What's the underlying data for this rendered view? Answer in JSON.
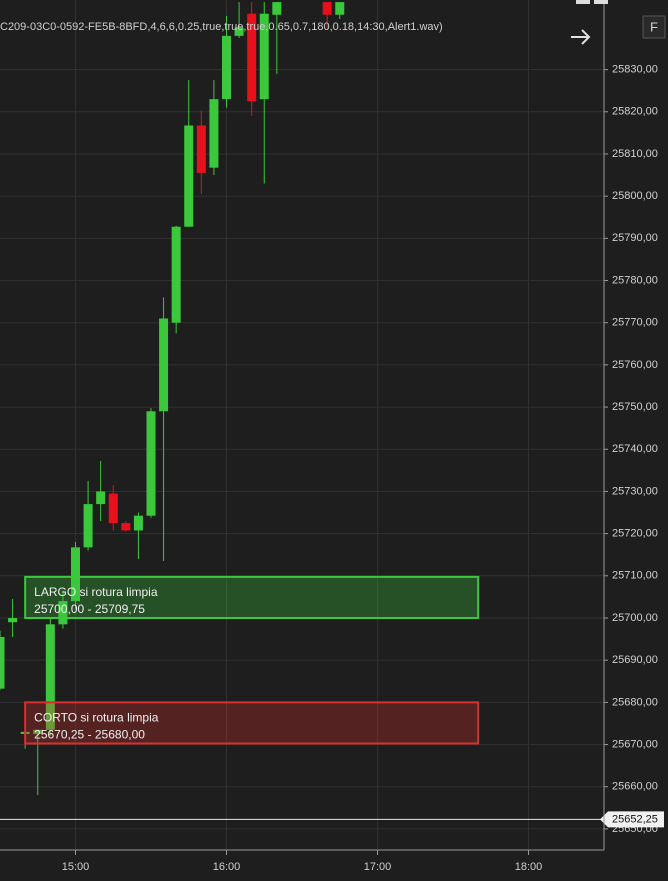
{
  "chart_data": {
    "type": "candlestick",
    "header": "C209-03C0-0592-FE5B-8BFD,4,6,6,0.25,true,true,true,0.65,0.7,180,0.18,14:30,Alert1.wav)",
    "button": "F",
    "up_color": "#3cc83c",
    "down_color": "#e8101a",
    "grid": true,
    "xlim": [
      "14:30",
      "18:30"
    ],
    "xticks": [
      "15:00",
      "16:00",
      "17:00",
      "18:00"
    ],
    "ylim": [
      25645,
      25846.5
    ],
    "yticks": [
      {
        "value": 25650,
        "label": "25650,00"
      },
      {
        "value": 25660,
        "label": "25660,00"
      },
      {
        "value": 25670,
        "label": "25670,00"
      },
      {
        "value": 25680,
        "label": "25680,00"
      },
      {
        "value": 25690,
        "label": "25690,00"
      },
      {
        "value": 25700,
        "label": "25700,00"
      },
      {
        "value": 25710,
        "label": "25710,00"
      },
      {
        "value": 25720,
        "label": "25720,00"
      },
      {
        "value": 25730,
        "label": "25730,00"
      },
      {
        "value": 25740,
        "label": "25740,00"
      },
      {
        "value": 25750,
        "label": "25750,00"
      },
      {
        "value": 25760,
        "label": "25760,00"
      },
      {
        "value": 25770,
        "label": "25770,00"
      },
      {
        "value": 25780,
        "label": "25780,00"
      },
      {
        "value": 25790,
        "label": "25790,00"
      },
      {
        "value": 25800,
        "label": "25800,00"
      },
      {
        "value": 25810,
        "label": "25810,00"
      },
      {
        "value": 25820,
        "label": "25820,00"
      },
      {
        "value": 25830,
        "label": "25830,00"
      }
    ],
    "candles": {
      "x": [
        "14:30",
        "14:35",
        "14:40",
        "14:45",
        "14:50",
        "14:55",
        "15:00",
        "15:05",
        "15:10",
        "15:15",
        "15:20",
        "15:25",
        "15:30",
        "15:35",
        "15:40",
        "15:45",
        "15:50",
        "15:55",
        "16:00",
        "16:05",
        "16:10",
        "16:15",
        "16:20",
        "16:40",
        "16:45"
      ],
      "open": [
        25683.25,
        25699,
        25672.5,
        25672.5,
        25673.5,
        25698.5,
        25704,
        25716.75,
        25727,
        25729.5,
        25722.5,
        25720.75,
        25724.25,
        25749,
        25770,
        25792.75,
        25816.75,
        25806.75,
        25823,
        25838,
        25843.25,
        25823,
        25843,
        25846,
        25843
      ],
      "high": [
        25697,
        25704.5,
        25676.5,
        25673.5,
        25700,
        25706.5,
        25718,
        25732.5,
        25737.25,
        25731.5,
        25723,
        25725,
        25749.75,
        25776,
        25793,
        25827.5,
        25820.25,
        25827.5,
        25842.75,
        25846,
        25846,
        25846,
        25846,
        25846,
        25846
      ],
      "low": [
        25683,
        25695.5,
        25669,
        25658,
        25672,
        25697.5,
        25702,
        25716,
        25723,
        25720.75,
        25720.5,
        25714,
        25723.75,
        25713.5,
        25767.5,
        25792.75,
        25800.5,
        25805,
        25821,
        25837.5,
        25819,
        25803,
        25829,
        25839.5,
        25842
      ],
      "close": [
        25695.5,
        25700,
        25673,
        25673.5,
        25698.5,
        25704,
        25716.75,
        25727,
        25730,
        25722.5,
        25720.75,
        25724.25,
        25749,
        25771,
        25792.75,
        25816.75,
        25805.5,
        25823,
        25838,
        25840,
        25822.5,
        25843.25,
        25846,
        25843,
        25846
      ]
    },
    "annotations": [
      {
        "text": "LARGO si rotura limpia",
        "range_label": "25700,00 - 25709,75",
        "low": 25700,
        "high": 25709.75,
        "start": "14:40",
        "end": "17:40",
        "color": "#3cc83c"
      },
      {
        "text": "CORTO si rotura limpia",
        "range_label": "25670,25 - 25680,00",
        "low": 25670.25,
        "high": 25680,
        "start": "14:40",
        "end": "17:40",
        "color": "#d83030"
      }
    ],
    "last_price": {
      "value": 25652.25,
      "label": "25652,25"
    }
  }
}
